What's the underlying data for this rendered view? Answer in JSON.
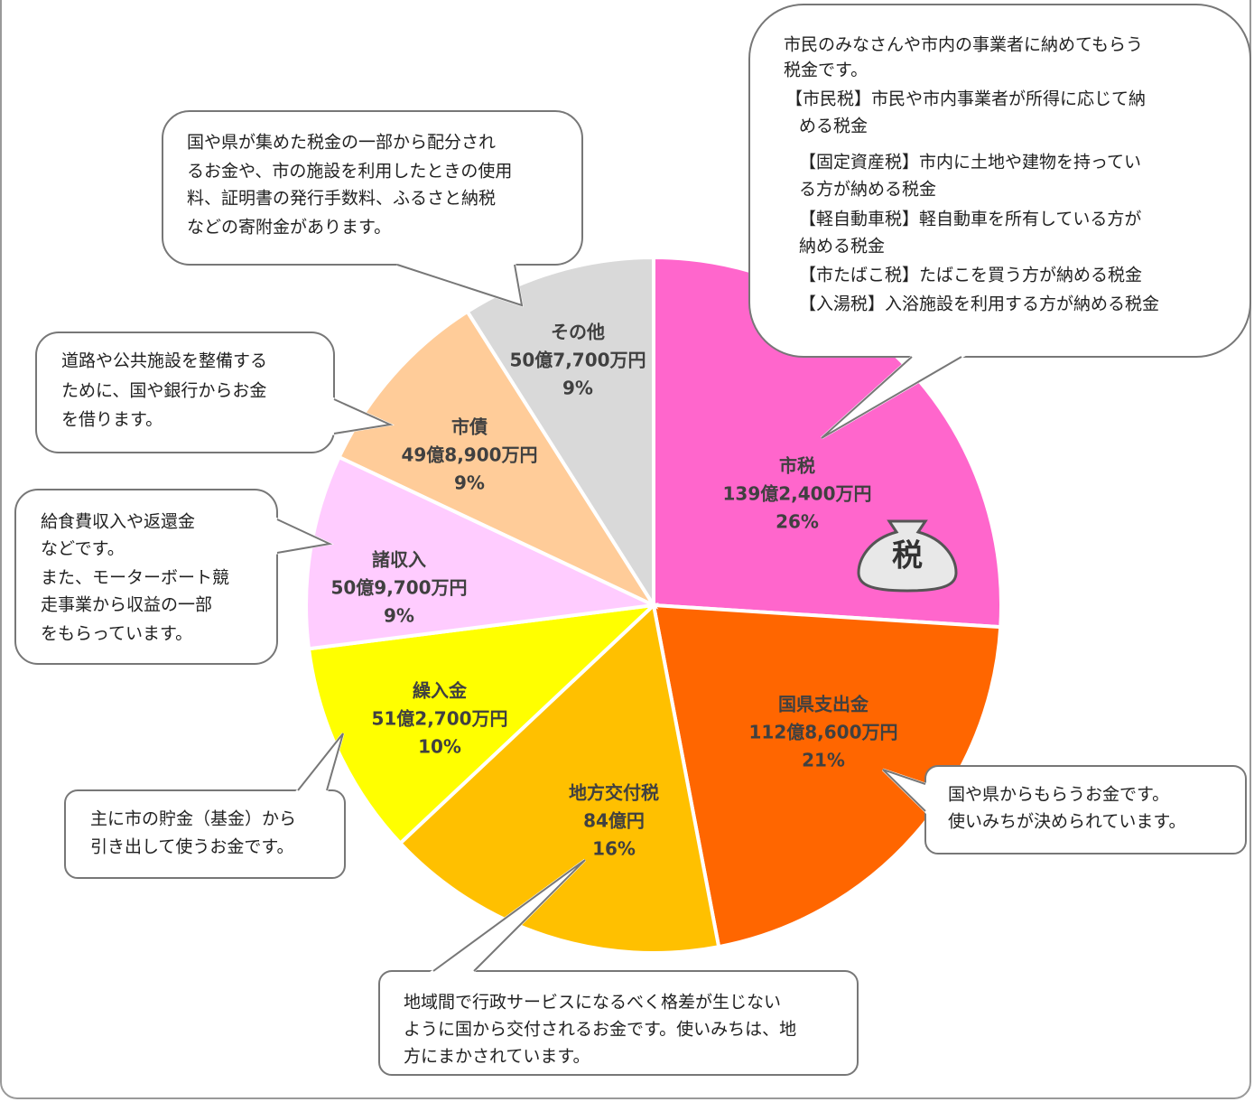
{
  "chart_data": {
    "type": "pie",
    "categories": [
      "市税",
      "国県支出金",
      "地方交付税",
      "繰入金",
      "諸収入",
      "市債",
      "その他"
    ],
    "values": [
      26,
      21,
      16,
      10,
      9,
      9,
      9
    ],
    "value_labels": [
      "26%",
      "21%",
      "16%",
      "10%",
      "9%",
      "9%",
      "9%"
    ],
    "amount_labels": [
      "139億2,400万円",
      "112億8,600万円",
      "84億円",
      "51億2,700万円",
      "50億9,700万円",
      "49億8,900万円",
      "50億7,700万円"
    ],
    "colors": [
      "#ff66cc",
      "#ff6600",
      "#ffc000",
      "#ffff00",
      "#ffccff",
      "#ffcc99",
      "#d9d9d9"
    ],
    "icon_text": "税",
    "annotations": [
      [
        "市民のみなさんや市内の事業者に納めてもらう",
        "税金です。",
        "【市民税】市民や市内事業者が所得に応じて納",
        "める税金",
        "【固定資産税】市内に土地や建物を持ってい",
        "る方が納める税金",
        "【軽自動車税】軽自動車を所有している方が",
        "納める税金",
        "【市たばこ税】たばこを買う方が納める税金",
        "【入湯税】入浴施設を利用する方が納める税金"
      ],
      [
        "国や県からもらうお金です。",
        "使いみちが決められています。"
      ],
      [
        "地域間で行政サービスになるべく格差が生じない",
        "ように国から交付されるお金です。使いみちは、地",
        "方にまかされています。"
      ],
      [
        "主に市の貯金（基金）から",
        "引き出して使うお金です。"
      ],
      [
        "給食費収入や返還金",
        "などです。",
        "また、モーターボート競",
        "走事業から収益の一部",
        "をもらっています。"
      ],
      [
        "道路や公共施設を整備する",
        "ために、国や銀行からお金",
        "を借ります。"
      ],
      [
        "国や県が集めた税金の一部から配分され",
        "るお金や、市の施設を利用したときの使用",
        "料、証明書の発行手数料、ふるさと納税",
        "などの寄附金があります。"
      ]
    ]
  }
}
